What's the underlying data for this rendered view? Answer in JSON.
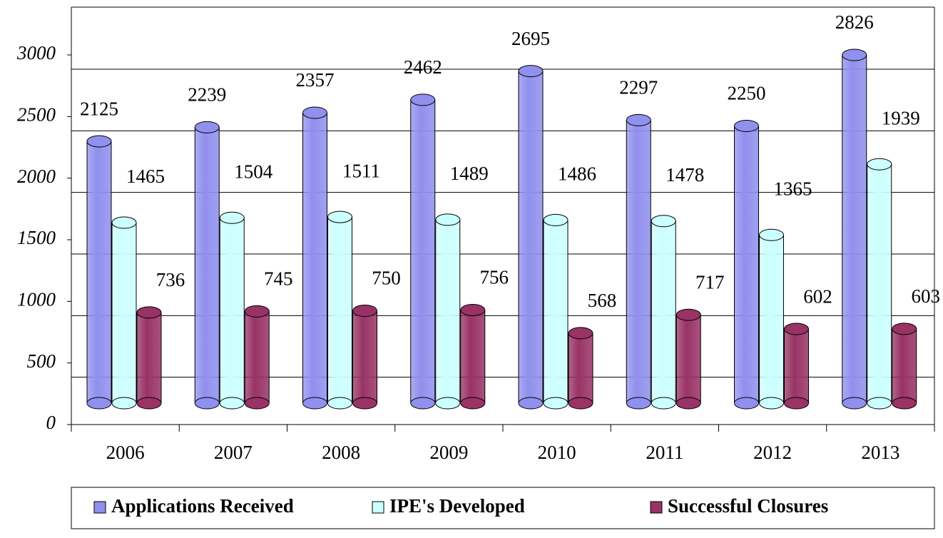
{
  "chart_data": {
    "type": "bar",
    "categories": [
      "2006",
      "2007",
      "2008",
      "2009",
      "2010",
      "2011",
      "2012",
      "2013"
    ],
    "series": [
      {
        "name": "Applications Received",
        "color": "#9090ee",
        "values": [
          2125,
          2239,
          2357,
          2462,
          2695,
          2297,
          2250,
          2826
        ]
      },
      {
        "name": "IPE's Developed",
        "color": "#ccffff",
        "values": [
          1465,
          1504,
          1511,
          1489,
          1486,
          1478,
          1365,
          1939
        ]
      },
      {
        "name": "Successful Closures",
        "color": "#993366",
        "values": [
          736,
          745,
          750,
          756,
          568,
          717,
          602,
          603
        ]
      }
    ],
    "ylim": [
      0,
      3400
    ],
    "yticks": [
      0,
      500,
      1000,
      1500,
      2000,
      2500,
      3000
    ],
    "grid": true,
    "legend": "bottom"
  }
}
